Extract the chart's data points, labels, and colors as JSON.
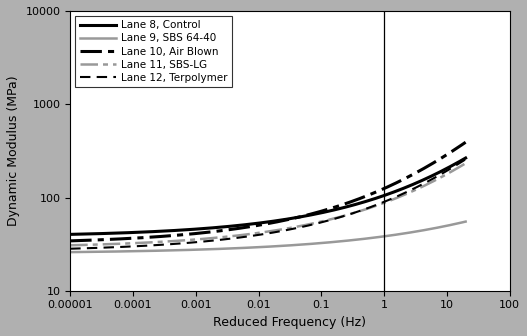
{
  "title": "",
  "xlabel": "Reduced Frequency (Hz)",
  "ylabel": "Dynamic Modulus (MPa)",
  "vline_x": 1,
  "background_color": "#b0b0b0",
  "plot_bg_color": "#ffffff",
  "curves": [
    {
      "label": "Lane 8, Control",
      "color": "#000000",
      "linestyle": "solid",
      "linewidth": 2.2,
      "alpha": 3.7,
      "beta": 2.0,
      "gamma": -0.6,
      "base": 1.58
    },
    {
      "label": "Lane 9, SBS 64-40",
      "color": "#999999",
      "linestyle": "solid",
      "linewidth": 1.8,
      "alpha": 3.2,
      "beta": 2.8,
      "gamma": -0.52,
      "base": 1.4
    },
    {
      "label": "Lane 10, Air Blown",
      "color": "#000000",
      "linestyle": "dashdot",
      "linewidth": 2.2,
      "alpha": 3.7,
      "beta": 1.65,
      "gamma": -0.6,
      "base": 1.5
    },
    {
      "label": "Lane 11, SBS-LG",
      "color": "#999999",
      "linestyle": "dashdot",
      "linewidth": 1.8,
      "alpha": 3.55,
      "beta": 1.85,
      "gamma": -0.6,
      "base": 1.46
    },
    {
      "label": "Lane 12, Terpolymer",
      "color": "#000000",
      "linestyle": "dashed",
      "linewidth": 1.5,
      "alpha": 3.6,
      "beta": 1.75,
      "gamma": -0.6,
      "base": 1.42
    }
  ]
}
